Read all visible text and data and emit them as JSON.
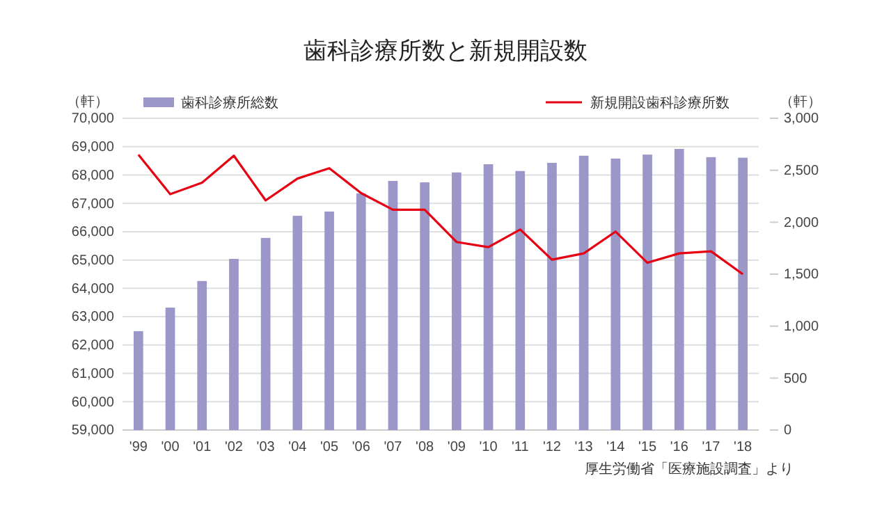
{
  "chart_data": {
    "type": "bar",
    "title": "歯科診療所数と新規開設数",
    "ylabel": "（軒）",
    "y2label": "（軒）",
    "categories": [
      "'99",
      "'00",
      "'01",
      "'02",
      "'03",
      "'04",
      "'05",
      "'06",
      "'07",
      "'08",
      "'09",
      "'10",
      "'11",
      "'12",
      "'13",
      "'14",
      "'15",
      "'16",
      "'17",
      "'18"
    ],
    "series": [
      {
        "name": "歯科診療所総数",
        "color": "#9c97c9",
        "values": [
          62490,
          63320,
          64260,
          65040,
          65780,
          66560,
          66710,
          67350,
          67790,
          67740,
          68090,
          68380,
          68140,
          68430,
          68680,
          68580,
          68720,
          68920,
          68630,
          68610
        ]
      },
      {
        "name": "新規開設歯科診療所数",
        "type": "line",
        "axis": "y2",
        "color": "#e60012",
        "values": [
          2650,
          2270,
          2380,
          2640,
          2210,
          2420,
          2520,
          2280,
          2120,
          2120,
          1810,
          1760,
          1930,
          1640,
          1700,
          1910,
          1610,
          1700,
          1720,
          1500
        ]
      }
    ],
    "ylim": [
      59000,
      70000
    ],
    "yticks": [
      {
        "value": 59000,
        "label": "59,000"
      },
      {
        "value": 60000,
        "label": "60,000"
      },
      {
        "value": 61000,
        "label": "61,000"
      },
      {
        "value": 62000,
        "label": "62,000"
      },
      {
        "value": 63000,
        "label": "63,000"
      },
      {
        "value": 64000,
        "label": "64,000"
      },
      {
        "value": 65000,
        "label": "65,000"
      },
      {
        "value": 66000,
        "label": "66,000"
      },
      {
        "value": 67000,
        "label": "67,000"
      },
      {
        "value": 68000,
        "label": "68,000"
      },
      {
        "value": 69000,
        "label": "69,000"
      },
      {
        "value": 70000,
        "label": "70,000"
      }
    ],
    "y2lim": [
      0,
      3000
    ],
    "y2ticks": [
      0,
      500,
      {
        "value": 1000,
        "label": "1,000"
      },
      {
        "value": 1500,
        "label": "1,500"
      },
      {
        "value": 2000,
        "label": "2,000"
      },
      {
        "value": 2500,
        "label": "2,500"
      },
      {
        "value": 3000,
        "label": "3,000"
      }
    ],
    "grid": "y",
    "legend": "top",
    "marker": "none",
    "annotations": [
      "厚生労働省「医療施設調査」より"
    ]
  }
}
